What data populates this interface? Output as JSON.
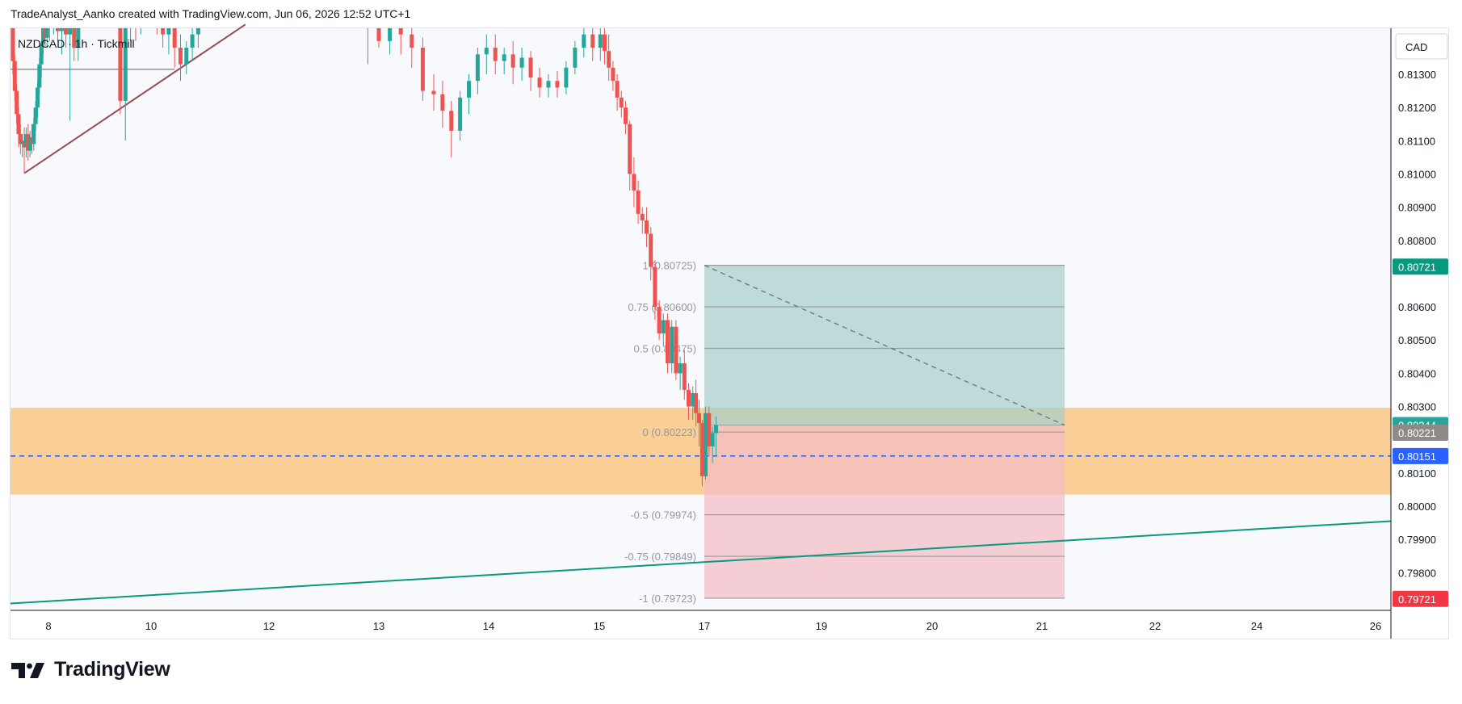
{
  "header": {
    "text": "TradeAnalyst_Aanko created with TradingView.com, Jun 06, 2026 12:52 UTC+1"
  },
  "symbol": {
    "text": "NZDCAD · 1h · Tickmill"
  },
  "currency": {
    "label": "CAD"
  },
  "footer": {
    "brand": "TradingView",
    "logo_icon": "tradingview-logo-icon"
  },
  "colors": {
    "bull": "#26a69a",
    "bear": "#ef5350",
    "zone": "#f9cc91",
    "target_fill": "#a9cfcb",
    "stop_fill": "#f3bcc4",
    "support_line": "#089981",
    "resistance_line": "#9b4a4d",
    "dashed_price": "#2962ff"
  },
  "chart_data": {
    "type": "candlestick",
    "symbol": "NZDCAD",
    "interval": "1h",
    "broker": "Tickmill",
    "currency": "CAD",
    "grid": false,
    "ylim": [
      0.7965,
      0.8145
    ],
    "y_ticks": [
      "0.81300",
      "0.81200",
      "0.81100",
      "0.81000",
      "0.80900",
      "0.80800",
      "0.80600",
      "0.80500",
      "0.80400",
      "0.80300",
      "0.80100",
      "0.80000",
      "0.79900",
      "0.79800"
    ],
    "x_tick_labels": [
      {
        "label": "8",
        "day": 8
      },
      {
        "label": "10",
        "day": 10
      },
      {
        "label": "12",
        "day": 12
      },
      {
        "label": "13",
        "day": 13
      },
      {
        "label": "14",
        "day": 14
      },
      {
        "label": "15",
        "day": 15
      },
      {
        "label": "17",
        "day": 17
      },
      {
        "label": "19",
        "day": 19
      },
      {
        "label": "20",
        "day": 20
      },
      {
        "label": "21",
        "day": 21
      },
      {
        "label": "22",
        "day": 22
      },
      {
        "label": "24",
        "day": 24
      },
      {
        "label": "26",
        "day": 26
      }
    ],
    "price_labels": [
      {
        "value": "0.80721",
        "price": 0.80721,
        "color": "#089981"
      },
      {
        "value": "0.80244",
        "price": 0.80244,
        "color": "#26a69a"
      },
      {
        "value": "0.80221",
        "price": 0.80221,
        "color": "#8f8a86"
      },
      {
        "value": "0.80151",
        "price": 0.80151,
        "color": "#2962ff"
      },
      {
        "value": "0.79721",
        "price": 0.79721,
        "color": "#f23645"
      }
    ],
    "zone": {
      "top": 0.80296,
      "bottom": 0.80035
    },
    "dashed_level": 0.80151,
    "fib": {
      "start_day": 17.0,
      "end_day": 21.2,
      "levels": [
        {
          "label": "1 (0.80725)",
          "price": 0.80725
        },
        {
          "label": "0.75 (0.80600)",
          "price": 0.806
        },
        {
          "label": "0.5 (0.80475)",
          "price": 0.80475
        },
        {
          "label": "0 (0.80223)",
          "price": 0.80223
        },
        {
          "label": "-0.5 (0.79974)",
          "price": 0.79974
        },
        {
          "label": "-0.75 (0.79849)",
          "price": 0.79849
        },
        {
          "label": "-1 (0.79723)",
          "price": 0.79723
        }
      ]
    },
    "position": {
      "entry": 0.80244,
      "target": 0.80725,
      "stop": 0.79723,
      "start_day": 17.0,
      "end_day": 21.2
    },
    "trendlines": [
      {
        "name": "resistance",
        "from": {
          "day": 7.0,
          "price": 0.81003
        },
        "to": {
          "day": 11.6,
          "price": 0.8145
        },
        "color": "#9b4a4d"
      },
      {
        "name": "support",
        "from": {
          "day": 6.4,
          "price": 0.79707
        },
        "to": {
          "day": 26.2,
          "price": 0.79955
        },
        "color": "#089981"
      }
    ],
    "horizontal_segment": {
      "from_day": 6.4,
      "to_day": 10.4,
      "price": 0.81315
    },
    "projection_line": {
      "from": {
        "day": 17.0,
        "price": 0.80725
      },
      "to": {
        "day": 21.2,
        "price": 0.80244
      }
    },
    "candles": [
      {
        "t": 6.5,
        "o": 0.8148,
        "h": 0.8152,
        "c": 0.8134,
        "l": 0.813
      },
      {
        "t": 6.58,
        "o": 0.8134,
        "h": 0.8136,
        "c": 0.8125,
        "l": 0.8122
      },
      {
        "t": 6.66,
        "o": 0.8125,
        "h": 0.8127,
        "c": 0.8118,
        "l": 0.8115
      },
      {
        "t": 6.74,
        "o": 0.8118,
        "h": 0.812,
        "c": 0.8112,
        "l": 0.8108
      },
      {
        "t": 6.82,
        "o": 0.8112,
        "h": 0.8115,
        "c": 0.8109,
        "l": 0.8106
      },
      {
        "t": 6.9,
        "o": 0.8109,
        "h": 0.8112,
        "c": 0.811,
        "l": 0.8105
      },
      {
        "t": 6.98,
        "o": 0.811,
        "h": 0.8114,
        "c": 0.8108,
        "l": 0.81
      },
      {
        "t": 7.06,
        "o": 0.8108,
        "h": 0.8114,
        "c": 0.8112,
        "l": 0.8105
      },
      {
        "t": 7.14,
        "o": 0.8112,
        "h": 0.8115,
        "c": 0.8107,
        "l": 0.8104
      },
      {
        "t": 7.22,
        "o": 0.8107,
        "h": 0.8113,
        "c": 0.8111,
        "l": 0.8105
      },
      {
        "t": 7.3,
        "o": 0.8111,
        "h": 0.8115,
        "c": 0.8109,
        "l": 0.8106
      },
      {
        "t": 7.38,
        "o": 0.8109,
        "h": 0.8117,
        "c": 0.8115,
        "l": 0.8107
      },
      {
        "t": 7.46,
        "o": 0.8115,
        "h": 0.8122,
        "c": 0.812,
        "l": 0.8113
      },
      {
        "t": 7.54,
        "o": 0.812,
        "h": 0.8128,
        "c": 0.8126,
        "l": 0.8117
      },
      {
        "t": 7.62,
        "o": 0.8126,
        "h": 0.8135,
        "c": 0.8133,
        "l": 0.8124
      },
      {
        "t": 7.7,
        "o": 0.8133,
        "h": 0.814,
        "c": 0.8139,
        "l": 0.8129
      },
      {
        "t": 7.78,
        "o": 0.8139,
        "h": 0.8146,
        "c": 0.8144,
        "l": 0.8136
      },
      {
        "t": 7.86,
        "o": 0.8144,
        "h": 0.8149,
        "c": 0.8141,
        "l": 0.8138
      },
      {
        "t": 7.94,
        "o": 0.8141,
        "h": 0.815,
        "c": 0.8148,
        "l": 0.8138
      },
      {
        "t": 8.02,
        "o": 0.8148,
        "h": 0.8155,
        "c": 0.8146,
        "l": 0.814
      },
      {
        "t": 8.1,
        "o": 0.8146,
        "h": 0.8155,
        "c": 0.8153,
        "l": 0.8142
      },
      {
        "t": 8.18,
        "o": 0.8153,
        "h": 0.8158,
        "c": 0.8143,
        "l": 0.814
      },
      {
        "t": 8.26,
        "o": 0.8143,
        "h": 0.8152,
        "c": 0.815,
        "l": 0.8136
      },
      {
        "t": 8.34,
        "o": 0.815,
        "h": 0.8156,
        "c": 0.8142,
        "l": 0.8138
      },
      {
        "t": 8.42,
        "o": 0.8142,
        "h": 0.8148,
        "c": 0.8146,
        "l": 0.8116
      },
      {
        "t": 8.5,
        "o": 0.8146,
        "h": 0.8152,
        "c": 0.8138,
        "l": 0.8134
      },
      {
        "t": 8.58,
        "o": 0.8138,
        "h": 0.815,
        "c": 0.8148,
        "l": 0.8134
      },
      {
        "t": 8.66,
        "o": 0.8148,
        "h": 0.8155,
        "c": 0.8154,
        "l": 0.8144
      },
      {
        "t": 9.0,
        "o": 0.8154,
        "h": 0.816,
        "c": 0.8158,
        "l": 0.815
      },
      {
        "t": 9.4,
        "o": 0.8158,
        "h": 0.816,
        "c": 0.8122,
        "l": 0.8118
      },
      {
        "t": 9.5,
        "o": 0.8122,
        "h": 0.8148,
        "c": 0.8146,
        "l": 0.811
      },
      {
        "t": 9.6,
        "o": 0.8146,
        "h": 0.8156,
        "c": 0.815,
        "l": 0.814
      },
      {
        "t": 9.7,
        "o": 0.815,
        "h": 0.8156,
        "c": 0.8145,
        "l": 0.814
      },
      {
        "t": 9.8,
        "o": 0.8145,
        "h": 0.8154,
        "c": 0.8152,
        "l": 0.8142
      },
      {
        "t": 9.9,
        "o": 0.8152,
        "h": 0.8156,
        "c": 0.8148,
        "l": 0.8144
      },
      {
        "t": 10.0,
        "o": 0.8148,
        "h": 0.8152,
        "c": 0.8151,
        "l": 0.8145
      },
      {
        "t": 10.1,
        "o": 0.8151,
        "h": 0.8154,
        "c": 0.8146,
        "l": 0.8142
      },
      {
        "t": 10.2,
        "o": 0.8146,
        "h": 0.815,
        "c": 0.8142,
        "l": 0.8138
      },
      {
        "t": 10.3,
        "o": 0.8142,
        "h": 0.8146,
        "c": 0.8144,
        "l": 0.8136
      },
      {
        "t": 10.4,
        "o": 0.8144,
        "h": 0.8148,
        "c": 0.8138,
        "l": 0.8132
      },
      {
        "t": 10.5,
        "o": 0.8138,
        "h": 0.8142,
        "c": 0.8133,
        "l": 0.8128
      },
      {
        "t": 10.6,
        "o": 0.8133,
        "h": 0.814,
        "c": 0.8138,
        "l": 0.813
      },
      {
        "t": 10.7,
        "o": 0.8138,
        "h": 0.8144,
        "c": 0.8142,
        "l": 0.8134
      },
      {
        "t": 10.8,
        "o": 0.8142,
        "h": 0.815,
        "c": 0.8148,
        "l": 0.8138
      },
      {
        "t": 10.9,
        "o": 0.8148,
        "h": 0.8155,
        "c": 0.8152,
        "l": 0.8144
      },
      {
        "t": 11.0,
        "o": 0.8152,
        "h": 0.8156,
        "c": 0.8149,
        "l": 0.8145
      },
      {
        "t": 11.2,
        "o": 0.8149,
        "h": 0.816,
        "c": 0.8156,
        "l": 0.8146
      },
      {
        "t": 11.4,
        "o": 0.8156,
        "h": 0.816,
        "c": 0.815,
        "l": 0.8146
      },
      {
        "t": 11.6,
        "o": 0.815,
        "h": 0.8158,
        "c": 0.8154,
        "l": 0.8147
      },
      {
        "t": 11.8,
        "o": 0.8154,
        "h": 0.816,
        "c": 0.8152,
        "l": 0.8148
      },
      {
        "t": 12.0,
        "o": 0.8152,
        "h": 0.816,
        "c": 0.8158,
        "l": 0.8146
      },
      {
        "t": 12.2,
        "o": 0.8158,
        "h": 0.816,
        "c": 0.8153,
        "l": 0.8148
      },
      {
        "t": 12.4,
        "o": 0.8153,
        "h": 0.816,
        "c": 0.8157,
        "l": 0.8149
      },
      {
        "t": 12.6,
        "o": 0.8157,
        "h": 0.816,
        "c": 0.8152,
        "l": 0.8147
      },
      {
        "t": 12.8,
        "o": 0.8152,
        "h": 0.8158,
        "c": 0.8156,
        "l": 0.8146
      },
      {
        "t": 12.9,
        "o": 0.8156,
        "h": 0.8159,
        "c": 0.8148,
        "l": 0.8133
      },
      {
        "t": 13.0,
        "o": 0.8148,
        "h": 0.8152,
        "c": 0.814,
        "l": 0.8138
      },
      {
        "t": 13.1,
        "o": 0.814,
        "h": 0.815,
        "c": 0.8147,
        "l": 0.8136
      },
      {
        "t": 13.2,
        "o": 0.8147,
        "h": 0.815,
        "c": 0.8142,
        "l": 0.8136
      },
      {
        "t": 13.3,
        "o": 0.8142,
        "h": 0.8146,
        "c": 0.8138,
        "l": 0.8132
      },
      {
        "t": 13.4,
        "o": 0.8138,
        "h": 0.8141,
        "c": 0.8125,
        "l": 0.8122
      },
      {
        "t": 13.5,
        "o": 0.8125,
        "h": 0.813,
        "c": 0.8124,
        "l": 0.8119
      },
      {
        "t": 13.58,
        "o": 0.8124,
        "h": 0.8128,
        "c": 0.8119,
        "l": 0.8114
      },
      {
        "t": 13.66,
        "o": 0.8119,
        "h": 0.8122,
        "c": 0.8113,
        "l": 0.8105
      },
      {
        "t": 13.74,
        "o": 0.8113,
        "h": 0.8125,
        "c": 0.8123,
        "l": 0.811
      },
      {
        "t": 13.82,
        "o": 0.8123,
        "h": 0.813,
        "c": 0.8128,
        "l": 0.8118
      },
      {
        "t": 13.9,
        "o": 0.8128,
        "h": 0.8138,
        "c": 0.8136,
        "l": 0.8124
      },
      {
        "t": 13.98,
        "o": 0.8136,
        "h": 0.8142,
        "c": 0.8138,
        "l": 0.813
      },
      {
        "t": 14.06,
        "o": 0.8138,
        "h": 0.8142,
        "c": 0.8134,
        "l": 0.813
      },
      {
        "t": 14.14,
        "o": 0.8134,
        "h": 0.8138,
        "c": 0.8136,
        "l": 0.813
      },
      {
        "t": 14.22,
        "o": 0.8136,
        "h": 0.814,
        "c": 0.8132,
        "l": 0.8127
      },
      {
        "t": 14.3,
        "o": 0.8132,
        "h": 0.8138,
        "c": 0.8135,
        "l": 0.8128
      },
      {
        "t": 14.38,
        "o": 0.8135,
        "h": 0.8137,
        "c": 0.8129,
        "l": 0.8125
      },
      {
        "t": 14.46,
        "o": 0.8129,
        "h": 0.8132,
        "c": 0.8126,
        "l": 0.8123
      },
      {
        "t": 14.54,
        "o": 0.8126,
        "h": 0.813,
        "c": 0.8128,
        "l": 0.8123
      },
      {
        "t": 14.62,
        "o": 0.8128,
        "h": 0.8131,
        "c": 0.8126,
        "l": 0.8123
      },
      {
        "t": 14.7,
        "o": 0.8126,
        "h": 0.8134,
        "c": 0.8132,
        "l": 0.8124
      },
      {
        "t": 14.78,
        "o": 0.8132,
        "h": 0.814,
        "c": 0.8138,
        "l": 0.813
      },
      {
        "t": 14.86,
        "o": 0.8138,
        "h": 0.8144,
        "c": 0.8142,
        "l": 0.8135
      },
      {
        "t": 14.94,
        "o": 0.8142,
        "h": 0.8146,
        "c": 0.8138,
        "l": 0.8134
      },
      {
        "t": 15.02,
        "o": 0.8138,
        "h": 0.8144,
        "c": 0.8142,
        "l": 0.8134
      },
      {
        "t": 15.1,
        "o": 0.8142,
        "h": 0.8146,
        "c": 0.8137,
        "l": 0.8133
      },
      {
        "t": 15.18,
        "o": 0.8137,
        "h": 0.8142,
        "c": 0.8132,
        "l": 0.8128
      },
      {
        "t": 15.26,
        "o": 0.8132,
        "h": 0.8134,
        "c": 0.8128,
        "l": 0.8125
      },
      {
        "t": 15.34,
        "o": 0.8128,
        "h": 0.813,
        "c": 0.8123,
        "l": 0.8119
      },
      {
        "t": 15.42,
        "o": 0.8123,
        "h": 0.8125,
        "c": 0.812,
        "l": 0.8117
      },
      {
        "t": 15.5,
        "o": 0.812,
        "h": 0.8122,
        "c": 0.8115,
        "l": 0.8112
      },
      {
        "t": 15.58,
        "o": 0.8115,
        "h": 0.8116,
        "c": 0.81,
        "l": 0.8095
      },
      {
        "t": 15.66,
        "o": 0.81,
        "h": 0.8105,
        "c": 0.8095,
        "l": 0.809
      },
      {
        "t": 15.74,
        "o": 0.8095,
        "h": 0.8098,
        "c": 0.8088,
        "l": 0.8085
      },
      {
        "t": 15.82,
        "o": 0.8088,
        "h": 0.809,
        "c": 0.8086,
        "l": 0.8082
      },
      {
        "t": 15.9,
        "o": 0.8086,
        "h": 0.809,
        "c": 0.8082,
        "l": 0.8078
      },
      {
        "t": 15.98,
        "o": 0.8082,
        "h": 0.8084,
        "c": 0.8072,
        "l": 0.8068
      },
      {
        "t": 16.06,
        "o": 0.8072,
        "h": 0.8074,
        "c": 0.806,
        "l": 0.8056
      },
      {
        "t": 16.14,
        "o": 0.806,
        "h": 0.8062,
        "c": 0.8052,
        "l": 0.805
      },
      {
        "t": 16.22,
        "o": 0.8052,
        "h": 0.8058,
        "c": 0.8056,
        "l": 0.8048
      },
      {
        "t": 16.3,
        "o": 0.8056,
        "h": 0.8058,
        "c": 0.8043,
        "l": 0.804
      },
      {
        "t": 16.38,
        "o": 0.8043,
        "h": 0.8056,
        "c": 0.8054,
        "l": 0.804
      },
      {
        "t": 16.46,
        "o": 0.8054,
        "h": 0.8056,
        "c": 0.804,
        "l": 0.8038
      },
      {
        "t": 16.54,
        "o": 0.804,
        "h": 0.8045,
        "c": 0.8043,
        "l": 0.8035
      },
      {
        "t": 16.62,
        "o": 0.8043,
        "h": 0.8047,
        "c": 0.8035,
        "l": 0.8032
      },
      {
        "t": 16.7,
        "o": 0.8035,
        "h": 0.8037,
        "c": 0.803,
        "l": 0.8026
      },
      {
        "t": 16.78,
        "o": 0.803,
        "h": 0.8036,
        "c": 0.8034,
        "l": 0.8026
      },
      {
        "t": 16.84,
        "o": 0.8034,
        "h": 0.8038,
        "c": 0.8028,
        "l": 0.8024
      },
      {
        "t": 16.9,
        "o": 0.8028,
        "h": 0.8032,
        "c": 0.8025,
        "l": 0.8018
      },
      {
        "t": 16.96,
        "o": 0.8025,
        "h": 0.8026,
        "c": 0.8009,
        "l": 0.8006
      },
      {
        "t": 17.02,
        "o": 0.8009,
        "h": 0.803,
        "c": 0.8028,
        "l": 0.8008
      },
      {
        "t": 17.08,
        "o": 0.8028,
        "h": 0.803,
        "c": 0.8018,
        "l": 0.8015
      },
      {
        "t": 17.14,
        "o": 0.8018,
        "h": 0.8024,
        "c": 0.8022,
        "l": 0.8013
      },
      {
        "t": 17.2,
        "o": 0.8022,
        "h": 0.8027,
        "c": 0.80244,
        "l": 0.8015
      }
    ]
  }
}
